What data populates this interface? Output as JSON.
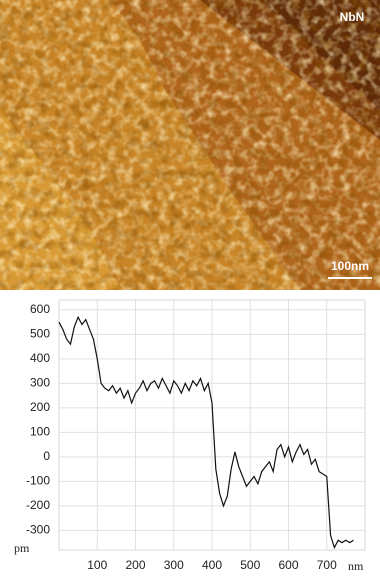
{
  "image": {
    "label": "NbN",
    "scale_bar": "100nm"
  },
  "chart_data": {
    "type": "line",
    "x_label": "nm",
    "y_label": "pm",
    "color": "#111111",
    "grid": true,
    "x": [
      0,
      10,
      20,
      30,
      40,
      50,
      60,
      70,
      80,
      90,
      100,
      110,
      120,
      130,
      140,
      150,
      160,
      170,
      180,
      190,
      200,
      210,
      220,
      230,
      240,
      250,
      260,
      270,
      280,
      290,
      300,
      310,
      320,
      330,
      340,
      350,
      360,
      370,
      380,
      390,
      400,
      410,
      420,
      430,
      440,
      450,
      460,
      470,
      480,
      490,
      500,
      510,
      520,
      530,
      540,
      550,
      560,
      570,
      580,
      590,
      600,
      610,
      620,
      630,
      640,
      650,
      660,
      670,
      680,
      690,
      700,
      710,
      720,
      730,
      740,
      750,
      760,
      770
    ],
    "values": [
      550,
      520,
      480,
      460,
      530,
      570,
      540,
      560,
      520,
      480,
      400,
      300,
      280,
      270,
      290,
      260,
      280,
      240,
      270,
      220,
      260,
      280,
      310,
      270,
      300,
      310,
      280,
      320,
      290,
      260,
      310,
      290,
      260,
      300,
      270,
      310,
      290,
      320,
      270,
      300,
      220,
      -50,
      -150,
      -200,
      -160,
      -50,
      20,
      -40,
      -80,
      -120,
      -100,
      -80,
      -110,
      -60,
      -40,
      -20,
      -60,
      30,
      50,
      0,
      40,
      -20,
      20,
      50,
      10,
      30,
      -30,
      -10,
      -60,
      -70,
      -80,
      -320,
      -370,
      -340,
      -350,
      -340,
      -350,
      -340
    ],
    "xlim": [
      0,
      800
    ],
    "ylim": [
      -380,
      640
    ],
    "xticks": [
      100,
      200,
      300,
      400,
      500,
      600,
      700
    ],
    "yticks": [
      600,
      500,
      400,
      300,
      200,
      100,
      0,
      -100,
      -200,
      -300
    ]
  }
}
